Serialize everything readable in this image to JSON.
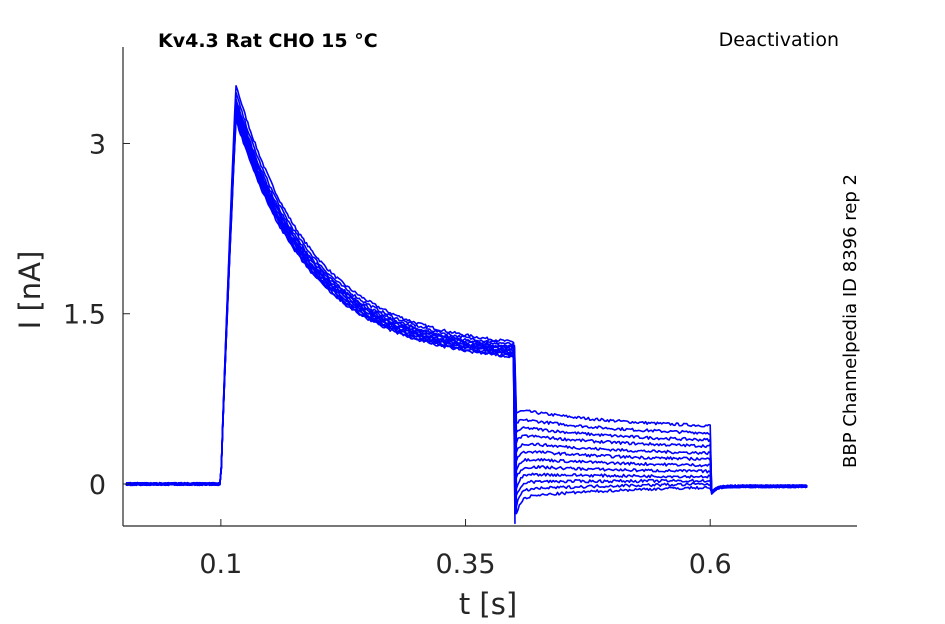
{
  "chart_data": {
    "type": "line",
    "title": "Kv4.3  Rat  CHO  15 °C",
    "protocol": "Deactivation",
    "side_label": "BBP Channelpedia ID 8396 rep 2",
    "xlabel": "t [s]",
    "ylabel": "I [nA]",
    "xlim": [
      0.0,
      0.75
    ],
    "ylim": [
      -0.37,
      3.85
    ],
    "xticks": [
      {
        "value": 0.1,
        "label": "0.1"
      },
      {
        "value": 0.35,
        "label": "0.35"
      },
      {
        "value": 0.6,
        "label": "0.6"
      }
    ],
    "yticks": [
      {
        "value": 0,
        "label": "0"
      },
      {
        "value": 1.5,
        "label": "1.5"
      },
      {
        "value": 3,
        "label": "3"
      }
    ],
    "color": "#0000ff",
    "grid": false,
    "legend": "none",
    "protocol_timing": {
      "baseline_start": 0.003,
      "step_on": 0.1,
      "peak_time": 0.115,
      "step_off": 0.4,
      "tail_end": 0.6,
      "trace_end": 0.7
    },
    "series": [
      {
        "peak": 3.45,
        "plateau": 1.2,
        "tail_level": 0.66,
        "tail_end_level": 0.48
      },
      {
        "peak": 3.38,
        "plateau": 1.18,
        "tail_level": 0.58,
        "tail_end_level": 0.42
      },
      {
        "peak": 3.33,
        "plateau": 1.16,
        "tail_level": 0.51,
        "tail_end_level": 0.36
      },
      {
        "peak": 3.3,
        "plateau": 1.15,
        "tail_level": 0.44,
        "tail_end_level": 0.31
      },
      {
        "peak": 3.28,
        "plateau": 1.14,
        "tail_level": 0.37,
        "tail_end_level": 0.25
      },
      {
        "peak": 3.25,
        "plateau": 1.13,
        "tail_level": 0.3,
        "tail_end_level": 0.2
      },
      {
        "peak": 3.23,
        "plateau": 1.12,
        "tail_level": 0.23,
        "tail_end_level": 0.15
      },
      {
        "peak": 3.22,
        "plateau": 1.11,
        "tail_level": 0.16,
        "tail_end_level": 0.1
      },
      {
        "peak": 3.2,
        "plateau": 1.1,
        "tail_level": 0.09,
        "tail_end_level": 0.06
      },
      {
        "peak": 3.18,
        "plateau": 1.09,
        "tail_level": 0.02,
        "tail_end_level": 0.03
      },
      {
        "peak": 3.16,
        "plateau": 1.08,
        "tail_level": -0.05,
        "tail_end_level": 0.01
      },
      {
        "peak": 3.14,
        "plateau": 1.07,
        "tail_level": -0.12,
        "tail_end_level": -0.01
      }
    ]
  }
}
